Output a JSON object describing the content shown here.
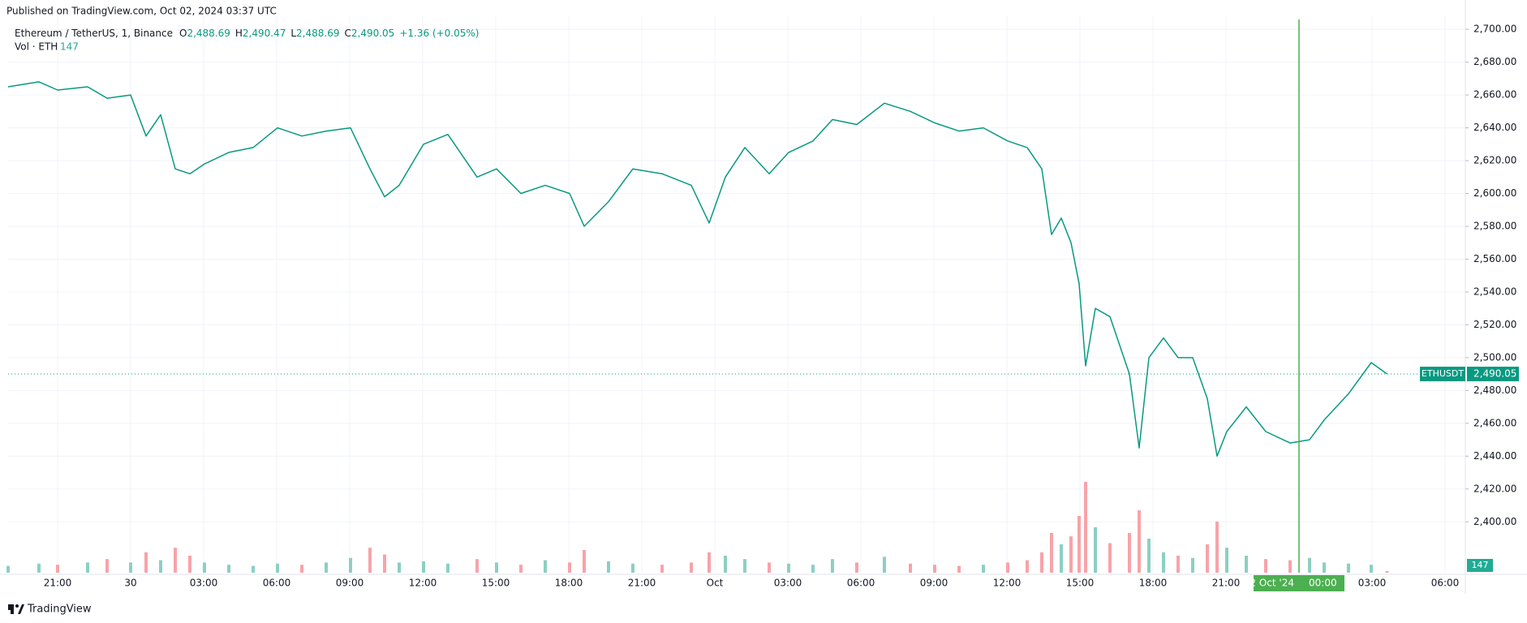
{
  "chart_data": {
    "type": "line",
    "header": "Published on TradingView.com, Oct 02, 2024 03:37 UTC",
    "legend": {
      "symbol": "Ethereum / TetherUS, 1, Binance",
      "ohlc": [
        {
          "key": "O",
          "value": "2,488.69"
        },
        {
          "key": "H",
          "value": "2,490.47"
        },
        {
          "key": "L",
          "value": "2,488.69"
        },
        {
          "key": "C",
          "value": "2,490.05"
        }
      ],
      "change": "+1.36 (+0.05%)"
    },
    "x": [
      "2024-09-29T18:58",
      "2024-09-29T20:14",
      "2024-09-29T21:00",
      "2024-09-29T22:14",
      "2024-09-29T23:02",
      "2024-09-30T00:00",
      "2024-09-30T00:38",
      "2024-09-30T01:14",
      "2024-09-30T01:50",
      "2024-09-30T02:26",
      "2024-09-30T03:02",
      "2024-09-30T04:02",
      "2024-09-30T05:02",
      "2024-09-30T06:02",
      "2024-09-30T07:02",
      "2024-09-30T08:02",
      "2024-09-30T09:02",
      "2024-09-30T09:50",
      "2024-09-30T10:26",
      "2024-09-30T11:02",
      "2024-09-30T12:02",
      "2024-09-30T13:02",
      "2024-09-30T14:14",
      "2024-09-30T15:02",
      "2024-09-30T16:02",
      "2024-09-30T17:02",
      "2024-09-30T18:02",
      "2024-09-30T18:38",
      "2024-09-30T19:38",
      "2024-09-30T20:38",
      "2024-09-30T21:50",
      "2024-09-30T23:02",
      "2024-09-30T23:46",
      "2024-10-01T00:26",
      "2024-10-01T01:14",
      "2024-10-01T02:14",
      "2024-10-01T03:02",
      "2024-10-01T04:02",
      "2024-10-01T04:50",
      "2024-10-01T05:50",
      "2024-10-01T06:58",
      "2024-10-01T08:02",
      "2024-10-01T09:02",
      "2024-10-01T10:02",
      "2024-10-01T11:02",
      "2024-10-01T12:02",
      "2024-10-01T12:50",
      "2024-10-01T13:26",
      "2024-10-01T13:50",
      "2024-10-01T14:14",
      "2024-10-01T14:38",
      "2024-10-01T14:58",
      "2024-10-01T15:14",
      "2024-10-01T15:38",
      "2024-10-01T16:14",
      "2024-10-01T17:02",
      "2024-10-01T17:26",
      "2024-10-01T17:50",
      "2024-10-01T18:26",
      "2024-10-01T19:02",
      "2024-10-01T19:38",
      "2024-10-01T20:14",
      "2024-10-01T20:38",
      "2024-10-01T21:02",
      "2024-10-01T21:50",
      "2024-10-01T22:38",
      "2024-10-01T23:38",
      "2024-10-02T00:26",
      "2024-10-02T01:02",
      "2024-10-02T02:02",
      "2024-10-02T02:58",
      "2024-10-02T03:37"
    ],
    "series": [
      {
        "name": "ETHUSDT",
        "color": "#089981",
        "values": [
          2665,
          2668,
          2663,
          2665,
          2658,
          2660,
          2635,
          2648,
          2615,
          2612,
          2618,
          2625,
          2628,
          2640,
          2635,
          2638,
          2640,
          2615,
          2598,
          2605,
          2630,
          2636,
          2610,
          2615,
          2600,
          2605,
          2600,
          2580,
          2595,
          2615,
          2612,
          2605,
          2582,
          2610,
          2628,
          2612,
          2625,
          2632,
          2645,
          2642,
          2655,
          2650,
          2643,
          2638,
          2640,
          2632,
          2628,
          2615,
          2575,
          2585,
          2570,
          2545,
          2495,
          2530,
          2525,
          2490,
          2445,
          2500,
          2512,
          2500,
          2500,
          2475,
          2440,
          2455,
          2470,
          2455,
          2448,
          2450,
          2462,
          2478,
          2497,
          2490.05
        ]
      },
      {
        "name": "Vol · ETH",
        "axis": "volume",
        "up_color": "#8ccfc3",
        "down_color": "#f7a3a9",
        "values": [
          600,
          800,
          700,
          900,
          1200,
          900,
          1800,
          1100,
          2200,
          1500,
          900,
          700,
          600,
          800,
          700,
          900,
          1300,
          2200,
          1600,
          900,
          1000,
          800,
          1200,
          900,
          700,
          1100,
          900,
          2000,
          1000,
          800,
          700,
          900,
          1800,
          1500,
          1200,
          900,
          800,
          700,
          1200,
          900,
          1400,
          800,
          700,
          600,
          700,
          900,
          1100,
          1800,
          3500,
          2500,
          3200,
          5000,
          8000,
          4000,
          2600,
          3500,
          5500,
          3000,
          1800,
          1500,
          1300,
          2500,
          4500,
          2200,
          1500,
          1200,
          1100,
          1300,
          900,
          800,
          700,
          147
        ]
      }
    ],
    "xlim": [
      "2024-09-29T18:58",
      "2024-10-02T06:50"
    ],
    "xticks": [
      {
        "value": "2024-09-29T21:00",
        "label": "21:00"
      },
      {
        "value": "2024-09-30T00:00",
        "label": "30"
      },
      {
        "value": "2024-09-30T03:00",
        "label": "03:00"
      },
      {
        "value": "2024-09-30T06:00",
        "label": "06:00"
      },
      {
        "value": "2024-09-30T09:00",
        "label": "09:00"
      },
      {
        "value": "2024-09-30T12:00",
        "label": "12:00"
      },
      {
        "value": "2024-09-30T15:00",
        "label": "15:00"
      },
      {
        "value": "2024-09-30T18:00",
        "label": "18:00"
      },
      {
        "value": "2024-09-30T21:00",
        "label": "21:00"
      },
      {
        "value": "2024-10-01T00:00",
        "label": "Oct"
      },
      {
        "value": "2024-10-01T03:00",
        "label": "03:00"
      },
      {
        "value": "2024-10-01T06:00",
        "label": "06:00"
      },
      {
        "value": "2024-10-01T09:00",
        "label": "09:00"
      },
      {
        "value": "2024-10-01T12:00",
        "label": "12:00"
      },
      {
        "value": "2024-10-01T15:00",
        "label": "15:00"
      },
      {
        "value": "2024-10-01T18:00",
        "label": "18:00"
      },
      {
        "value": "2024-10-01T21:00",
        "label": "21:00"
      },
      {
        "value": "2024-10-02T03:00",
        "label": "03:00"
      },
      {
        "value": "2024-10-02T06:00",
        "label": "06:00"
      }
    ],
    "ylim": [
      2369,
      2706
    ],
    "yticks": [
      {
        "value": 2400,
        "label": "2,400.00"
      },
      {
        "value": 2420,
        "label": "2,420.00"
      },
      {
        "value": 2440,
        "label": "2,440.00"
      },
      {
        "value": 2460,
        "label": "2,460.00"
      },
      {
        "value": 2480,
        "label": "2,480.00"
      },
      {
        "value": 2500,
        "label": "2,500.00"
      },
      {
        "value": 2520,
        "label": "2,520.00"
      },
      {
        "value": 2540,
        "label": "2,540.00"
      },
      {
        "value": 2560,
        "label": "2,560.00"
      },
      {
        "value": 2580,
        "label": "2,580.00"
      },
      {
        "value": 2600,
        "label": "2,600.00"
      },
      {
        "value": 2620,
        "label": "2,620.00"
      },
      {
        "value": 2640,
        "label": "2,640.00"
      },
      {
        "value": 2660,
        "label": "2,660.00"
      },
      {
        "value": 2680,
        "label": "2,680.00"
      },
      {
        "value": 2700,
        "label": "2,700.00"
      }
    ],
    "vlim": [
      0,
      10000
    ],
    "grid": true,
    "last_price": {
      "label": "ETHUSDT",
      "value": 2490.05,
      "value_label": "2,490.05",
      "color": "#089981"
    },
    "crosshair": {
      "x": "2024-10-02T00:00",
      "date_label": "02 Oct '24",
      "time_label": "00:00",
      "color": "#4caf50"
    },
    "footer": "TradingView"
  }
}
